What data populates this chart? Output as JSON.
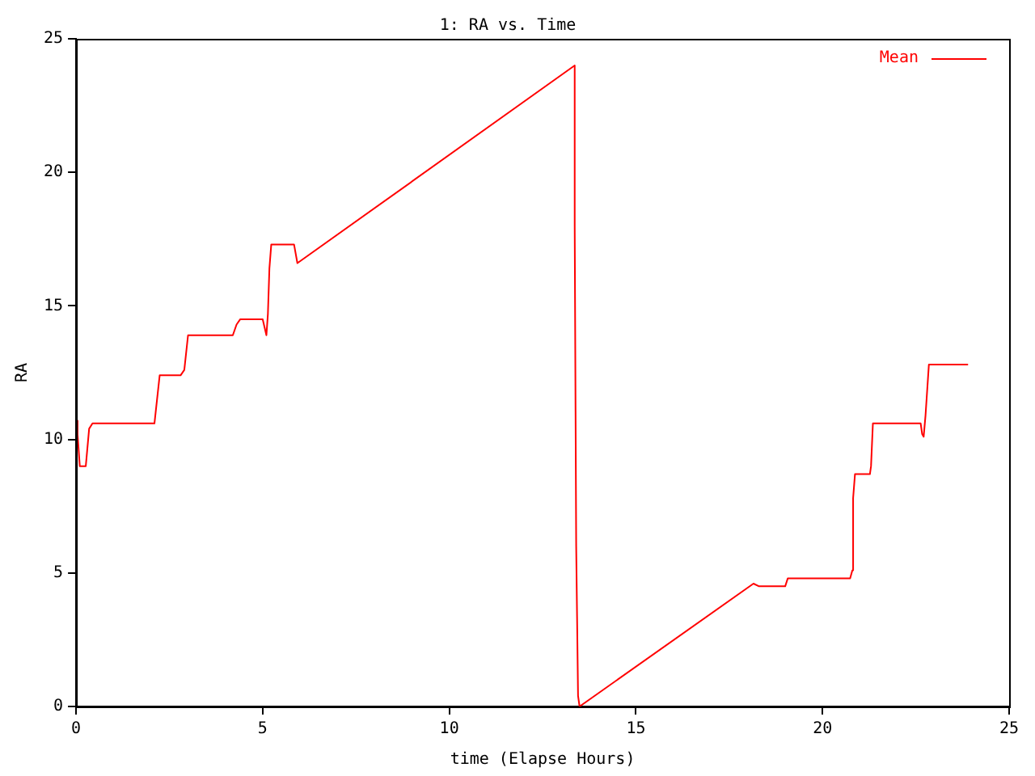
{
  "chart_data": {
    "type": "line",
    "title": "1: RA vs. Time",
    "xlabel": "time (Elapse Hours)",
    "ylabel": "RA",
    "x": [
      0,
      0.04,
      0.1,
      0.26,
      0.35,
      0.44,
      2.1,
      2.24,
      2.8,
      2.9,
      3.0,
      4.2,
      4.3,
      4.4,
      5.0,
      5.1,
      5.14,
      5.18,
      5.23,
      5.84,
      5.93,
      13.36,
      13.36,
      13.4,
      13.45,
      13.49,
      18.15,
      18.3,
      19.0,
      19.07,
      20.74,
      20.8,
      20.82,
      20.87,
      21.27,
      21.3,
      21.35,
      22.63,
      22.67,
      22.71,
      22.76,
      22.85,
      23.9
    ],
    "series": [
      {
        "name": "Mean",
        "color": "#ff0000",
        "values": [
          10.7,
          10.2,
          9.0,
          9.0,
          10.4,
          10.6,
          10.6,
          12.4,
          12.4,
          12.6,
          13.9,
          13.9,
          14.3,
          14.5,
          14.5,
          13.9,
          14.7,
          16.4,
          17.3,
          17.3,
          16.6,
          24.0,
          18.0,
          6.0,
          0.4,
          0,
          4.6,
          4.5,
          4.5,
          4.8,
          4.8,
          5.1,
          7.8,
          8.7,
          8.7,
          9.0,
          10.6,
          10.6,
          10.2,
          10.1,
          10.9,
          12.8,
          12.8
        ]
      }
    ],
    "xlim": [
      0,
      25
    ],
    "xticks": [
      0,
      5,
      10,
      15,
      20,
      25
    ],
    "ylim": [
      0,
      25
    ],
    "yticks": [
      0,
      5,
      10,
      15,
      20,
      25
    ],
    "grid": false,
    "legend": "top right",
    "marker": "none",
    "line_style": "solid"
  }
}
